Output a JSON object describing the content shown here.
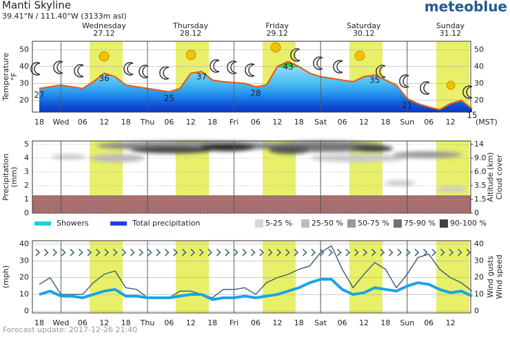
{
  "header": {
    "title": "Manti Skyline",
    "location": "39.41°N / 111.40°W (3133m asl)",
    "brand": "meteoblue",
    "timezone": "(MST)",
    "footer": "Forecast update: 2017-12-26 21:40"
  },
  "days": [
    {
      "name": "Wednesday",
      "date": "27.12",
      "color": "#000000"
    },
    {
      "name": "Thursday",
      "date": "28.12",
      "color": "#000000"
    },
    {
      "name": "Friday",
      "date": "29.12",
      "color": "#000000"
    },
    {
      "name": "Saturday",
      "date": "30.12",
      "color": "#d55a00"
    },
    {
      "name": "Sunday",
      "date": "31.12",
      "color": "#d55a00"
    }
  ],
  "chart_data": [
    {
      "type": "line",
      "axis_title": [
        "Temperature",
        "°F"
      ],
      "categories": [
        "18",
        null,
        "Wed",
        null,
        "06",
        null,
        "12",
        null,
        "18",
        null,
        "Thu",
        null,
        "06",
        null,
        "12",
        null,
        "18",
        null,
        "Fri",
        null,
        "06",
        null,
        "12",
        null,
        "18",
        null,
        "Sat",
        null,
        "06",
        null,
        "12",
        null,
        "18",
        null,
        "Sun",
        null,
        "06",
        null,
        "12",
        null,
        null
      ],
      "series": [
        {
          "name": "Temperature",
          "color": "#e0601a",
          "values": [
            27,
            28,
            29,
            28,
            27,
            31,
            36,
            34,
            29,
            28,
            27,
            26,
            25,
            27,
            36,
            37,
            32,
            31,
            30.5,
            30,
            28,
            29,
            40,
            43,
            40,
            36,
            34,
            33,
            32,
            31,
            34,
            35,
            32,
            29,
            21,
            18,
            16,
            14.5,
            18,
            20,
            15
          ],
          "value_labels": [
            "27",
            null,
            null,
            null,
            null,
            null,
            "36",
            null,
            null,
            null,
            null,
            null,
            "25",
            null,
            null,
            "37",
            null,
            null,
            null,
            null,
            "28",
            null,
            null,
            "43",
            null,
            null,
            null,
            null,
            null,
            null,
            null,
            "35",
            null,
            null,
            "21",
            null,
            null,
            null,
            null,
            null,
            "15"
          ]
        }
      ],
      "ylim": [
        13,
        55
      ],
      "yticks": [
        20,
        30,
        40,
        50
      ],
      "grid": true
    },
    {
      "type": "precipitation",
      "axis_title": [
        "Precipitation",
        "(mm)"
      ],
      "y2_title": [
        "Altitude (km)",
        "Cloud cover"
      ],
      "ylim": [
        0,
        5.25
      ],
      "yticks": [
        0,
        1,
        2,
        3,
        4,
        5
      ],
      "y2ticks": [
        0,
        1.5,
        3.5,
        {
          "value": 6,
          "label": "6.0"
        },
        {
          "value": 9,
          "label": "9.0"
        },
        14
      ],
      "legend": [
        {
          "name": "Showers",
          "color": "#20d0d8"
        },
        {
          "name": "Total precipitation",
          "color": "#2040e0"
        }
      ],
      "cloud_legend": [
        {
          "name": "5-25 %",
          "color": "#d8d8d8"
        },
        {
          "name": "25-50 %",
          "color": "#bdbdbd"
        },
        {
          "name": "50-75 %",
          "color": "#999999"
        },
        {
          "name": "75-90 %",
          "color": "#707070"
        },
        {
          "name": "90-100 %",
          "color": "#404040"
        }
      ]
    },
    {
      "type": "line",
      "axis_title": [
        "(mph)"
      ],
      "y2_title": [
        "Wind gusts",
        "Wind speed"
      ],
      "categories": [
        "18",
        null,
        "Wed",
        null,
        "06",
        null,
        "12",
        null,
        "18",
        null,
        "Thu",
        null,
        "06",
        null,
        "12",
        null,
        "18",
        null,
        "Fri",
        null,
        "06",
        null,
        "12",
        null,
        "18",
        null,
        "Sat",
        null,
        "06",
        null,
        "12",
        null,
        "18",
        null,
        "Sun",
        null,
        "06",
        null,
        "12",
        null,
        null
      ],
      "series": [
        {
          "name": "Wind gusts",
          "color": "#3f6478",
          "width": 1.5,
          "values": [
            16,
            20,
            10,
            10,
            10,
            17,
            22,
            24,
            14,
            13,
            8,
            8,
            8,
            12,
            12,
            10,
            8,
            13,
            13,
            14,
            10,
            17,
            20,
            22,
            25,
            27,
            35,
            39,
            25,
            14,
            22,
            29,
            25,
            14,
            22,
            32,
            34,
            25,
            20,
            17,
            12
          ]
        },
        {
          "name": "Wind speed",
          "color": "#1aa3e6",
          "width": 4,
          "values": [
            10,
            12,
            9,
            9,
            8,
            10,
            12,
            13,
            9,
            9,
            8,
            8,
            8,
            9,
            10,
            10,
            7,
            8,
            8,
            9,
            8,
            9,
            10,
            12,
            14,
            17,
            19,
            19,
            13,
            10,
            11,
            14,
            13,
            12,
            15,
            17,
            16,
            13,
            11,
            12,
            9
          ]
        }
      ],
      "ylim": [
        -1,
        42
      ],
      "yticks": [
        0,
        10,
        20,
        30,
        40
      ],
      "grid": true
    }
  ]
}
